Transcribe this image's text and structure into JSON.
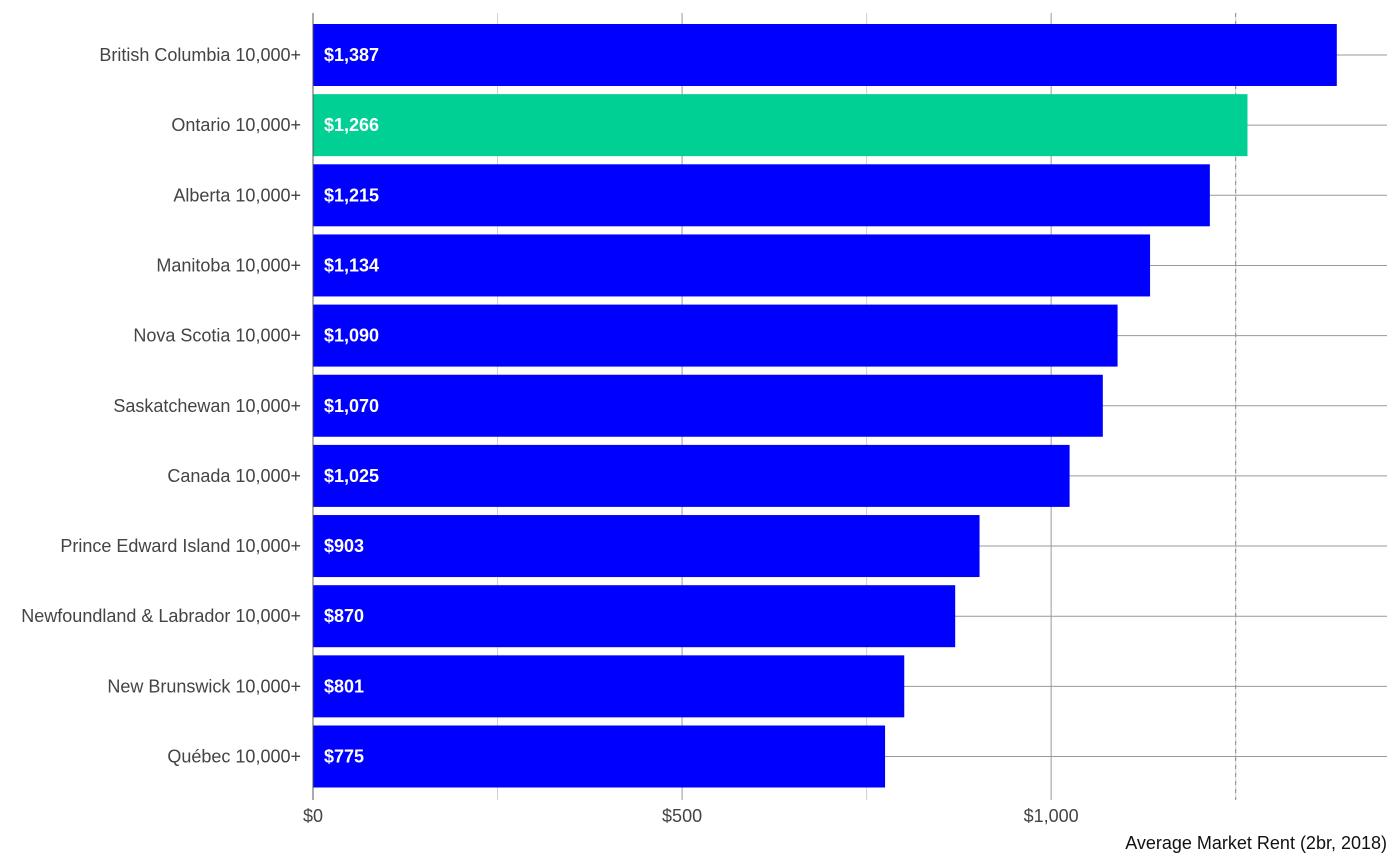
{
  "chart_data": {
    "type": "bar",
    "orientation": "horizontal",
    "categories": [
      "British Columbia 10,000+",
      "Ontario 10,000+",
      "Alberta 10,000+",
      "Manitoba 10,000+",
      "Nova Scotia 10,000+",
      "Saskatchewan 10,000+",
      "Canada 10,000+",
      "Prince Edward Island 10,000+",
      "Newfoundland & Labrador 10,000+",
      "New Brunswick 10,000+",
      "Québec 10,000+"
    ],
    "values": [
      1387,
      1266,
      1215,
      1134,
      1090,
      1070,
      1025,
      903,
      870,
      801,
      775
    ],
    "value_labels": [
      "$1,387",
      "$1,266",
      "$1,215",
      "$1,134",
      "$1,090",
      "$1,070",
      "$1,025",
      "$903",
      "$870",
      "$801",
      "$775"
    ],
    "highlight_category": "Ontario 10,000+",
    "x_ticks": [
      0,
      500,
      1000
    ],
    "x_tick_labels": [
      "$0",
      "$500",
      "$1,000"
    ],
    "xlim": [
      0,
      1455
    ],
    "reference_line": 1250,
    "xlabel": "Average Market Rent (2br, 2018)",
    "ylabel": "",
    "title": "",
    "grid": true,
    "legend": "none",
    "colors": {
      "bar": "#0000ff",
      "highlight": "#00d094",
      "value_text": "#ffffff",
      "grid_major": "#999999",
      "grid_minor": "#d0d0d0",
      "reference_line": "#888888"
    }
  }
}
